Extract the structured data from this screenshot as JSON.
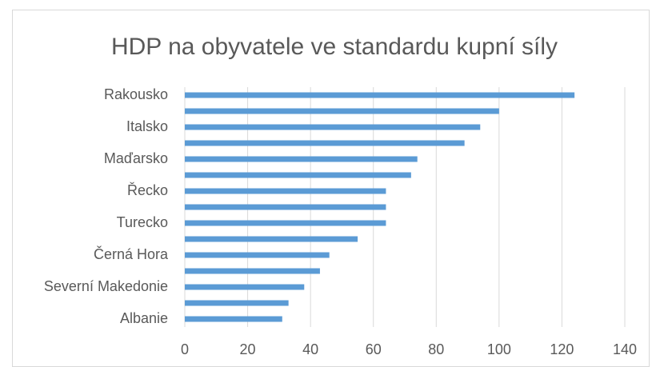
{
  "chart_data": {
    "type": "bar",
    "orientation": "horizontal",
    "title": "HDP na obyvatele ve standardu kupní síly",
    "categories": [
      "Rakousko",
      null,
      "Italsko",
      null,
      "Maďarsko",
      null,
      "Řecko",
      null,
      "Turecko",
      null,
      "Černá Hora",
      null,
      "Severní Makedonie",
      null,
      "Albanie"
    ],
    "values": [
      124,
      100,
      94,
      89,
      74,
      72,
      64,
      64,
      64,
      55,
      46,
      43,
      38,
      33,
      31
    ],
    "color": "#5b9bd5",
    "xlim": [
      0,
      140
    ],
    "xticks": [
      0,
      20,
      40,
      60,
      80,
      100,
      120,
      140
    ],
    "grid": true
  }
}
